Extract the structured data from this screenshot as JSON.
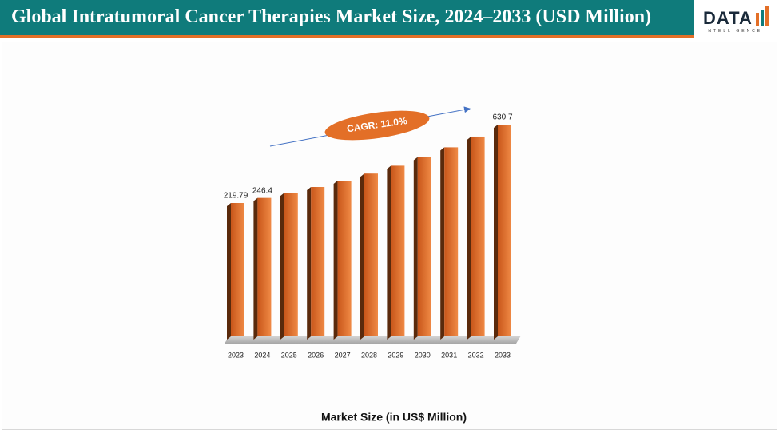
{
  "header": {
    "title": "Global Intratumoral Cancer Therapies Market Size, 2024–2033 (USD Million)",
    "logo": "DATA",
    "logo_sub": "INTELLIGENCE"
  },
  "chart_data": {
    "type": "bar",
    "categories": [
      "2023",
      "2024",
      "2025",
      "2026",
      "2027",
      "2028",
      "2029",
      "2030",
      "2031",
      "2032",
      "2033"
    ],
    "values": [
      219.79,
      246.4,
      273.5,
      303.6,
      337.0,
      374.1,
      415.2,
      460.9,
      511.6,
      567.9,
      630.7
    ],
    "value_labels": [
      "219.79",
      "246.4",
      null,
      null,
      null,
      null,
      null,
      null,
      null,
      null,
      "630.7"
    ],
    "color": "#e36f27",
    "annotation": "CAGR: 11.0%",
    "xlabel": "Market Size (in US$ Million)"
  }
}
